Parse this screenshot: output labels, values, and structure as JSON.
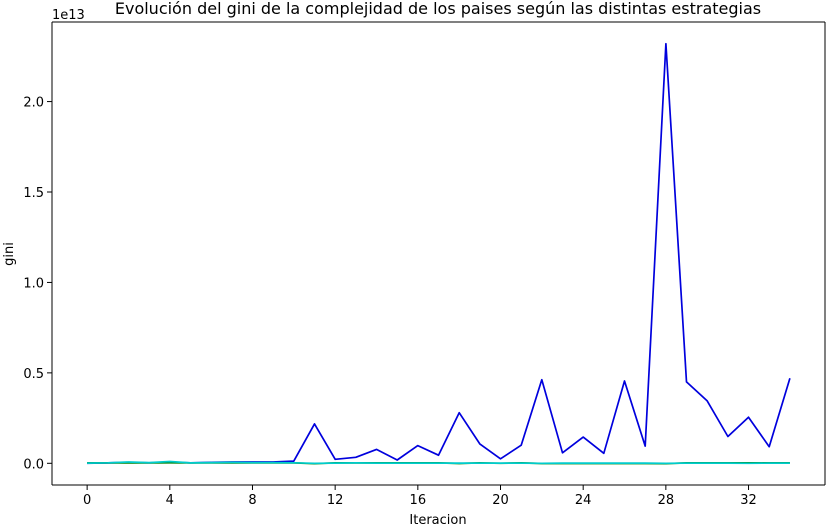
{
  "chart_data": {
    "type": "line",
    "title": "Evolución del gini de la complejidad de los paises según las distintas estrategias",
    "xlabel": "Iteracion",
    "ylabel": "gini",
    "y_offset_label": "1e13",
    "xlim": [
      -1.7,
      35.7
    ],
    "ylim": [
      -0.12,
      2.44
    ],
    "x_ticks": [
      0,
      4,
      8,
      12,
      16,
      20,
      24,
      28,
      32
    ],
    "x_tick_labels": [
      "0",
      "4",
      "8",
      "12",
      "16",
      "20",
      "24",
      "28",
      "32"
    ],
    "y_ticks": [
      0.0,
      0.5,
      1.0,
      1.5,
      2.0
    ],
    "y_tick_labels": [
      "0.0",
      "0.5",
      "1.0",
      "1.5",
      "2.0"
    ],
    "grid": false,
    "x": [
      0,
      1,
      2,
      3,
      4,
      5,
      6,
      7,
      8,
      9,
      10,
      11,
      12,
      13,
      14,
      15,
      16,
      17,
      18,
      19,
      20,
      21,
      22,
      23,
      24,
      25,
      26,
      27,
      28,
      29,
      30,
      31,
      32,
      33,
      34
    ],
    "series": [
      {
        "color": "#0000dd",
        "values": [
          0.0,
          0.002,
          0.005,
          0.003,
          0.006,
          0.003,
          0.005,
          0.007,
          0.007,
          0.007,
          0.012,
          0.218,
          0.022,
          0.033,
          0.077,
          0.018,
          0.098,
          0.045,
          0.28,
          0.107,
          0.025,
          0.1,
          0.462,
          0.058,
          0.145,
          0.055,
          0.455,
          0.095,
          2.32,
          0.45,
          0.345,
          0.148,
          0.255,
          0.092,
          0.47
        ]
      },
      {
        "color": "#008000",
        "values": [
          0.002,
          0.002,
          0.002,
          0.002,
          0.003,
          0.002,
          0.002,
          0.002,
          0.002,
          0.002,
          0.002,
          -0.002,
          0.002,
          0.002,
          0.002,
          0.002,
          0.002,
          0.002,
          -0.001,
          0.002,
          0.0,
          0.002,
          -0.001,
          -0.001,
          -0.001,
          -0.001,
          -0.001,
          -0.001,
          -0.002,
          0.002,
          0.002,
          0.002,
          0.002,
          0.002,
          0.002
        ]
      },
      {
        "color": "#00cccc",
        "values": [
          0.001,
          0.003,
          0.007,
          0.004,
          0.01,
          0.002,
          0.004,
          0.005,
          0.004,
          0.004,
          0.003,
          0.0,
          0.001,
          0.002,
          0.001,
          0.001,
          0.001,
          0.001,
          0.001,
          0.001,
          0.001,
          0.001,
          0.0,
          0.001,
          0.001,
          0.001,
          0.001,
          0.001,
          0.0,
          0.001,
          0.001,
          0.001,
          0.0,
          0.001,
          0.001
        ]
      }
    ]
  }
}
